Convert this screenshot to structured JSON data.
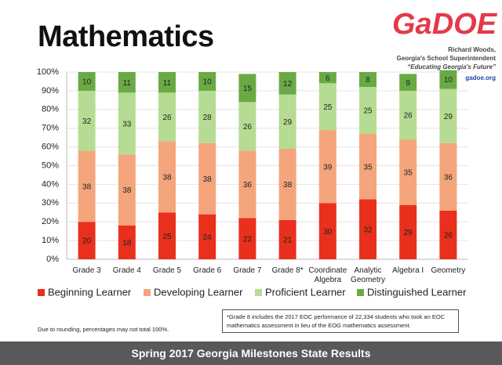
{
  "header": {
    "logo": "GaDOE",
    "lines": [
      "Richard Woods,",
      "Georgia's School Superintendent",
      "“Educating Georgia's Future”"
    ],
    "link": "gadoe.org"
  },
  "chart_data": {
    "type": "stacked-bar",
    "title": "Mathematics",
    "categories": [
      "Grade 3",
      "Grade 4",
      "Grade 5",
      "Grade 6",
      "Grade 7",
      "Grade 8*",
      "Coordinate\nAlgebra",
      "Analytic\nGeometry",
      "Algebra I",
      "Geometry"
    ],
    "series": [
      {
        "name": "Beginning Learner",
        "color": "#e8301c",
        "values": [
          20,
          18,
          25,
          24,
          22,
          21,
          30,
          32,
          29,
          26
        ]
      },
      {
        "name": "Developing Learner",
        "color": "#f5a57c",
        "values": [
          38,
          38,
          38,
          38,
          36,
          38,
          39,
          35,
          35,
          36
        ]
      },
      {
        "name": "Proficient Learner",
        "color": "#b6dc93",
        "values": [
          32,
          33,
          26,
          28,
          26,
          29,
          25,
          25,
          26,
          29
        ]
      },
      {
        "name": "Distinguished Learner",
        "color": "#6aaa45",
        "values": [
          10,
          11,
          11,
          10,
          15,
          12,
          6,
          8,
          9,
          10
        ]
      }
    ],
    "ylim": [
      0,
      100
    ],
    "yticks": [
      {
        "value": 0,
        "label": "0%"
      },
      {
        "value": 10,
        "label": "10%"
      },
      {
        "value": 20,
        "label": "20%"
      },
      {
        "value": 30,
        "label": "30%"
      },
      {
        "value": 40,
        "label": "40%"
      },
      {
        "value": 50,
        "label": "50%"
      },
      {
        "value": 60,
        "label": "60%"
      },
      {
        "value": 70,
        "label": "70%"
      },
      {
        "value": 80,
        "label": "80%"
      },
      {
        "value": 90,
        "label": "90%"
      },
      {
        "value": 100,
        "label": "100%"
      }
    ],
    "grid": true,
    "legend": "bottom"
  },
  "footnote": "Due to rounding, percentages may not total 100%.",
  "note": "*Grade 8 includes the 2017 EOC performance of 22,334 students who took an EOC mathematics assessment in lieu of the EOG mathematics assessment.",
  "footer": "Spring 2017 Georgia Milestones State Results"
}
